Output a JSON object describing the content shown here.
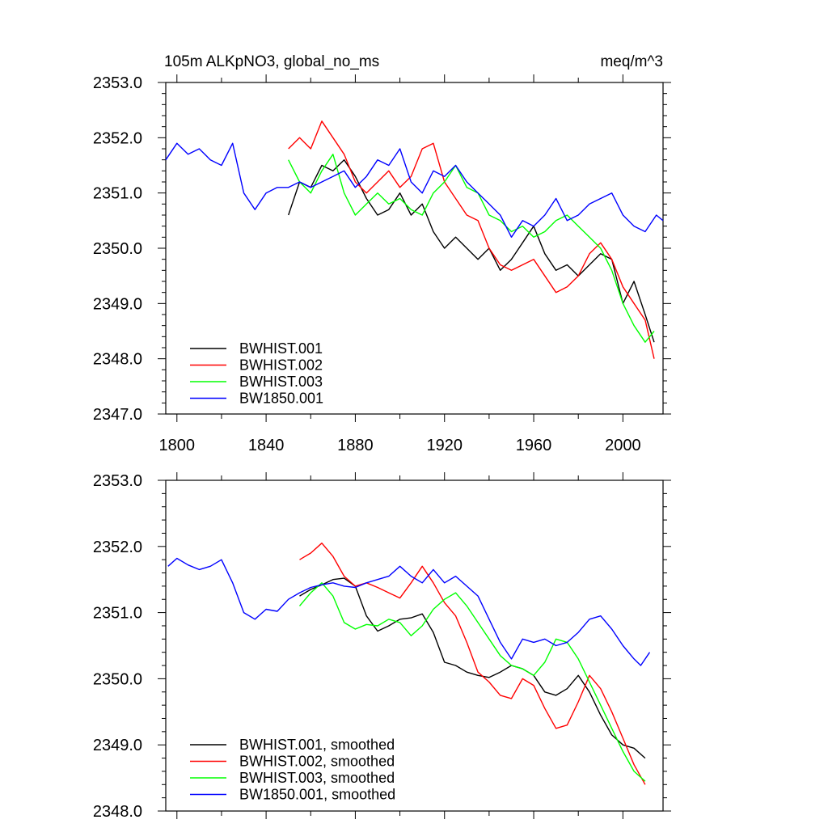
{
  "chart_data": [
    {
      "type": "line",
      "title_left": "105m ALKpNO3, global_no_ms",
      "title_right": "meq/m^3",
      "xlabel": "",
      "ylabel": "",
      "xlim": [
        1795,
        2018
      ],
      "ylim": [
        2347.0,
        2353.0
      ],
      "x_ticks": [
        1800,
        1840,
        1880,
        1920,
        1960,
        2000
      ],
      "y_ticks": [
        "2347.0",
        "2348.0",
        "2349.0",
        "2350.0",
        "2351.0",
        "2352.0",
        "2353.0"
      ],
      "legend_position": "bottom-left",
      "grid": false,
      "series": [
        {
          "name": "BWHIST.001",
          "color": "#000000",
          "x": [
            1850,
            1855,
            1860,
            1865,
            1870,
            1875,
            1880,
            1885,
            1890,
            1895,
            1900,
            1905,
            1910,
            1915,
            1920,
            1925,
            1930,
            1935,
            1940,
            1945,
            1950,
            1955,
            1960,
            1965,
            1970,
            1975,
            1980,
            1985,
            1990,
            1995,
            2000,
            2005,
            2010,
            2014
          ],
          "y": [
            2350.6,
            2351.2,
            2351.1,
            2351.5,
            2351.4,
            2351.6,
            2351.3,
            2350.9,
            2350.6,
            2350.7,
            2351.0,
            2350.6,
            2350.8,
            2350.3,
            2350.0,
            2350.2,
            2350.0,
            2349.8,
            2350.0,
            2349.6,
            2349.8,
            2350.1,
            2350.4,
            2349.9,
            2349.6,
            2349.7,
            2349.5,
            2349.7,
            2349.9,
            2349.8,
            2349.0,
            2349.4,
            2348.8,
            2348.3
          ]
        },
        {
          "name": "BWHIST.002",
          "color": "#ff0000",
          "x": [
            1850,
            1855,
            1860,
            1865,
            1870,
            1875,
            1880,
            1885,
            1890,
            1895,
            1900,
            1905,
            1910,
            1915,
            1920,
            1925,
            1930,
            1935,
            1940,
            1945,
            1950,
            1955,
            1960,
            1965,
            1970,
            1975,
            1980,
            1985,
            1990,
            1995,
            2000,
            2005,
            2010,
            2014
          ],
          "y": [
            2351.8,
            2352.0,
            2351.8,
            2352.3,
            2352.0,
            2351.7,
            2351.2,
            2351.0,
            2351.2,
            2351.4,
            2351.1,
            2351.3,
            2351.8,
            2351.9,
            2351.2,
            2350.9,
            2350.6,
            2350.5,
            2350.0,
            2349.7,
            2349.6,
            2349.7,
            2349.8,
            2349.5,
            2349.2,
            2349.3,
            2349.5,
            2349.9,
            2350.1,
            2349.8,
            2349.3,
            2349.0,
            2348.7,
            2348.0
          ]
        },
        {
          "name": "BWHIST.003",
          "color": "#00ff00",
          "x": [
            1850,
            1855,
            1860,
            1865,
            1870,
            1875,
            1880,
            1885,
            1890,
            1895,
            1900,
            1905,
            1910,
            1915,
            1920,
            1925,
            1930,
            1935,
            1940,
            1945,
            1950,
            1955,
            1960,
            1965,
            1970,
            1975,
            1980,
            1985,
            1990,
            1995,
            2000,
            2005,
            2010,
            2014
          ],
          "y": [
            2351.6,
            2351.2,
            2351.0,
            2351.4,
            2351.7,
            2351.0,
            2350.6,
            2350.8,
            2351.0,
            2350.8,
            2350.9,
            2350.7,
            2350.6,
            2351.0,
            2351.2,
            2351.5,
            2351.1,
            2351.0,
            2350.6,
            2350.5,
            2350.3,
            2350.4,
            2350.2,
            2350.3,
            2350.5,
            2350.6,
            2350.4,
            2350.2,
            2350.0,
            2349.6,
            2349.0,
            2348.6,
            2348.3,
            2348.5
          ]
        },
        {
          "name": "BW1850.001",
          "color": "#0000ff",
          "x": [
            1795,
            1800,
            1805,
            1810,
            1815,
            1820,
            1825,
            1830,
            1835,
            1840,
            1845,
            1850,
            1855,
            1860,
            1865,
            1870,
            1875,
            1880,
            1885,
            1890,
            1895,
            1900,
            1905,
            1910,
            1915,
            1920,
            1925,
            1930,
            1935,
            1940,
            1945,
            1950,
            1955,
            1960,
            1965,
            1970,
            1975,
            1980,
            1985,
            1990,
            1995,
            2000,
            2005,
            2010,
            2015,
            2018
          ],
          "y": [
            2351.6,
            2351.9,
            2351.7,
            2351.8,
            2351.6,
            2351.5,
            2351.9,
            2351.0,
            2350.7,
            2351.0,
            2351.1,
            2351.1,
            2351.2,
            2351.1,
            2351.2,
            2351.3,
            2351.4,
            2351.1,
            2351.3,
            2351.6,
            2351.5,
            2351.8,
            2351.2,
            2351.0,
            2351.4,
            2351.3,
            2351.5,
            2351.2,
            2351.0,
            2350.8,
            2350.6,
            2350.2,
            2350.5,
            2350.4,
            2350.6,
            2350.9,
            2350.5,
            2350.6,
            2350.8,
            2350.9,
            2351.0,
            2350.6,
            2350.4,
            2350.3,
            2350.6,
            2350.5
          ]
        }
      ]
    },
    {
      "type": "line",
      "xlabel": "",
      "ylabel": "",
      "xlim": [
        1795,
        2018
      ],
      "ylim": [
        2348.0,
        2353.0
      ],
      "x_ticks": [
        1800,
        1840,
        1880,
        1920,
        1960,
        2000
      ],
      "y_ticks": [
        "2348.0",
        "2349.0",
        "2350.0",
        "2351.0",
        "2352.0",
        "2353.0"
      ],
      "legend_position": "bottom-left",
      "grid": false,
      "series": [
        {
          "name": "BWHIST.001, smoothed",
          "color": "#000000",
          "x": [
            1855,
            1860,
            1865,
            1870,
            1875,
            1880,
            1885,
            1890,
            1895,
            1900,
            1905,
            1910,
            1915,
            1920,
            1925,
            1930,
            1935,
            1940,
            1945,
            1950,
            1955,
            1960,
            1965,
            1970,
            1975,
            1980,
            1985,
            1990,
            1995,
            2000,
            2005,
            2010
          ],
          "y": [
            2351.25,
            2351.35,
            2351.42,
            2351.5,
            2351.52,
            2351.4,
            2350.95,
            2350.72,
            2350.8,
            2350.9,
            2350.92,
            2350.98,
            2350.7,
            2350.25,
            2350.2,
            2350.1,
            2350.05,
            2350.02,
            2350.1,
            2350.2,
            2350.15,
            2350.05,
            2349.8,
            2349.75,
            2349.85,
            2350.05,
            2349.8,
            2349.45,
            2349.15,
            2349.0,
            2348.95,
            2348.8
          ]
        },
        {
          "name": "BWHIST.002, smoothed",
          "color": "#ff0000",
          "x": [
            1855,
            1860,
            1865,
            1870,
            1875,
            1880,
            1885,
            1890,
            1895,
            1900,
            1905,
            1910,
            1915,
            1920,
            1925,
            1930,
            1935,
            1940,
            1945,
            1950,
            1955,
            1960,
            1965,
            1970,
            1975,
            1980,
            1985,
            1990,
            1995,
            2000,
            2005,
            2010
          ],
          "y": [
            2351.8,
            2351.9,
            2352.05,
            2351.85,
            2351.55,
            2351.4,
            2351.45,
            2351.38,
            2351.3,
            2351.22,
            2351.45,
            2351.7,
            2351.45,
            2351.15,
            2350.95,
            2350.55,
            2350.1,
            2349.95,
            2349.75,
            2349.7,
            2350.0,
            2349.9,
            2349.55,
            2349.25,
            2349.3,
            2349.65,
            2350.05,
            2349.85,
            2349.5,
            2349.1,
            2348.7,
            2348.4
          ]
        },
        {
          "name": "BWHIST.003, smoothed",
          "color": "#00ff00",
          "x": [
            1855,
            1860,
            1865,
            1870,
            1875,
            1880,
            1885,
            1890,
            1895,
            1900,
            1905,
            1910,
            1915,
            1920,
            1925,
            1930,
            1935,
            1940,
            1945,
            1950,
            1955,
            1960,
            1965,
            1970,
            1975,
            1980,
            1985,
            1990,
            1995,
            2000,
            2005,
            2010
          ],
          "y": [
            2351.1,
            2351.3,
            2351.45,
            2351.25,
            2350.85,
            2350.75,
            2350.82,
            2350.8,
            2350.9,
            2350.85,
            2350.65,
            2350.8,
            2351.05,
            2351.2,
            2351.3,
            2351.1,
            2350.85,
            2350.6,
            2350.35,
            2350.2,
            2350.15,
            2350.05,
            2350.25,
            2350.6,
            2350.55,
            2350.3,
            2349.95,
            2349.6,
            2349.25,
            2348.9,
            2348.6,
            2348.45
          ]
        },
        {
          "name": "BW1850.001, smoothed",
          "color": "#0000ff",
          "x": [
            1796,
            1800,
            1805,
            1810,
            1815,
            1820,
            1825,
            1830,
            1835,
            1840,
            1845,
            1850,
            1855,
            1860,
            1865,
            1870,
            1875,
            1880,
            1885,
            1890,
            1895,
            1900,
            1905,
            1910,
            1915,
            1920,
            1925,
            1930,
            1935,
            1940,
            1945,
            1950,
            1955,
            1960,
            1965,
            1970,
            1975,
            1980,
            1985,
            1990,
            1995,
            2000,
            2005,
            2008,
            2012
          ],
          "y": [
            2351.7,
            2351.82,
            2351.72,
            2351.65,
            2351.7,
            2351.8,
            2351.45,
            2351.0,
            2350.9,
            2351.05,
            2351.02,
            2351.2,
            2351.3,
            2351.38,
            2351.42,
            2351.45,
            2351.4,
            2351.38,
            2351.45,
            2351.5,
            2351.55,
            2351.7,
            2351.55,
            2351.45,
            2351.65,
            2351.45,
            2351.55,
            2351.4,
            2351.25,
            2350.9,
            2350.55,
            2350.3,
            2350.6,
            2350.55,
            2350.6,
            2350.5,
            2350.55,
            2350.7,
            2350.9,
            2350.95,
            2350.75,
            2350.5,
            2350.3,
            2350.2,
            2350.4
          ]
        }
      ]
    }
  ]
}
